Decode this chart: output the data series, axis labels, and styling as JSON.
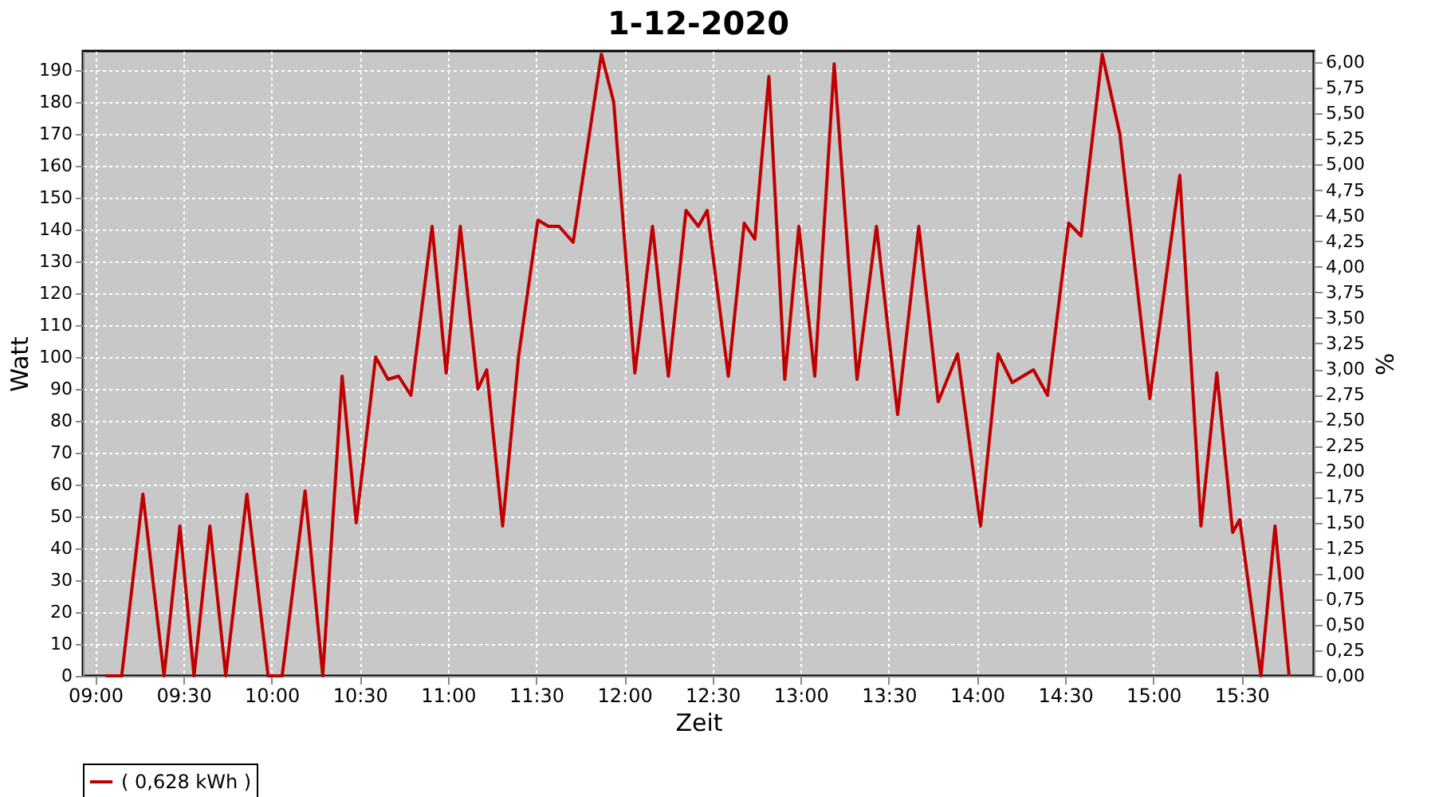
{
  "chart_data": {
    "type": "line",
    "title": "1-12-2020",
    "xlabel": "Zeit",
    "ylabel": "Watt",
    "y2label": "%",
    "xlim": [
      8.93,
      15.91
    ],
    "xticks": [
      {
        "value": 9,
        "label": "09:00"
      },
      {
        "value": 9.5,
        "label": "09:30"
      },
      {
        "value": 10,
        "label": "10:00"
      },
      {
        "value": 10.5,
        "label": "10:30"
      },
      {
        "value": 11,
        "label": "11:00"
      },
      {
        "value": 11.5,
        "label": "11:30"
      },
      {
        "value": 12,
        "label": "12:00"
      },
      {
        "value": 12.5,
        "label": "12:30"
      },
      {
        "value": 13,
        "label": "13:00"
      },
      {
        "value": 13.5,
        "label": "13:30"
      },
      {
        "value": 14,
        "label": "14:00"
      },
      {
        "value": 14.5,
        "label": "14:30"
      },
      {
        "value": 15,
        "label": "15:00"
      },
      {
        "value": 15.5,
        "label": "15:30"
      }
    ],
    "ylim": [
      0,
      196
    ],
    "yticks": [
      0,
      10,
      20,
      30,
      40,
      50,
      60,
      70,
      80,
      90,
      100,
      110,
      120,
      130,
      140,
      150,
      160,
      170,
      180,
      190
    ],
    "y2lim": [
      0,
      6.11
    ],
    "y2ticks": [
      {
        "value": 0,
        "label": "0,00"
      },
      {
        "value": 0.25,
        "label": "0,25"
      },
      {
        "value": 0.5,
        "label": "0,50"
      },
      {
        "value": 0.75,
        "label": "0,75"
      },
      {
        "value": 1,
        "label": "1,00"
      },
      {
        "value": 1.25,
        "label": "1,25"
      },
      {
        "value": 1.5,
        "label": "1,50"
      },
      {
        "value": 1.75,
        "label": "1,75"
      },
      {
        "value": 2,
        "label": "2,00"
      },
      {
        "value": 2.25,
        "label": "2,25"
      },
      {
        "value": 2.5,
        "label": "2,50"
      },
      {
        "value": 2.75,
        "label": "2,75"
      },
      {
        "value": 3,
        "label": "3,00"
      },
      {
        "value": 3.25,
        "label": "3,25"
      },
      {
        "value": 3.5,
        "label": "3,50"
      },
      {
        "value": 3.75,
        "label": "3,75"
      },
      {
        "value": 4,
        "label": "4,00"
      },
      {
        "value": 4.25,
        "label": "4,25"
      },
      {
        "value": 4.5,
        "label": "4,50"
      },
      {
        "value": 4.75,
        "label": "4,75"
      },
      {
        "value": 5,
        "label": "5,00"
      },
      {
        "value": 5.25,
        "label": "5,25"
      },
      {
        "value": 5.5,
        "label": "5,50"
      },
      {
        "value": 5.75,
        "label": "5,75"
      },
      {
        "value": 6,
        "label": "6,00"
      }
    ],
    "grid": true,
    "legend": "bottom",
    "marker": "none",
    "line_style": "solid",
    "series": [
      {
        "name": "( 0,628 kWh )",
        "color": "#c00000",
        "x": [
          9.06,
          9.15,
          9.27,
          9.39,
          9.48,
          9.56,
          9.65,
          9.74,
          9.86,
          9.98,
          10.06,
          10.19,
          10.29,
          10.4,
          10.48,
          10.59,
          10.66,
          10.72,
          10.79,
          10.91,
          10.99,
          11.07,
          11.17,
          11.22,
          11.31,
          11.4,
          11.51,
          11.57,
          11.63,
          11.71,
          11.87,
          11.94,
          12.06,
          12.16,
          12.25,
          12.35,
          12.42,
          12.47,
          12.59,
          12.68,
          12.74,
          12.82,
          12.91,
          12.99,
          13.08,
          13.19,
          13.32,
          13.43,
          13.55,
          13.67,
          13.78,
          13.89,
          14.02,
          14.12,
          14.2,
          14.32,
          14.4,
          14.52,
          14.59,
          14.71,
          14.81,
          14.98,
          15.15,
          15.27,
          15.36,
          15.45,
          15.49,
          15.61,
          15.69,
          15.77
        ],
        "values": [
          0,
          0,
          57,
          0,
          47,
          0,
          47,
          0,
          57,
          0,
          0,
          58,
          0,
          94,
          48,
          100,
          93,
          94,
          88,
          141,
          95,
          141,
          90,
          96,
          47,
          100,
          143,
          141,
          141,
          136,
          195,
          180,
          95,
          141,
          94,
          146,
          141,
          146,
          94,
          142,
          137,
          188,
          93,
          141,
          94,
          192,
          93,
          141,
          82,
          141,
          86,
          101,
          47,
          101,
          92,
          96,
          88,
          142,
          138,
          195,
          170,
          87,
          157,
          47,
          95,
          45,
          49,
          0,
          47,
          0
        ]
      }
    ]
  }
}
